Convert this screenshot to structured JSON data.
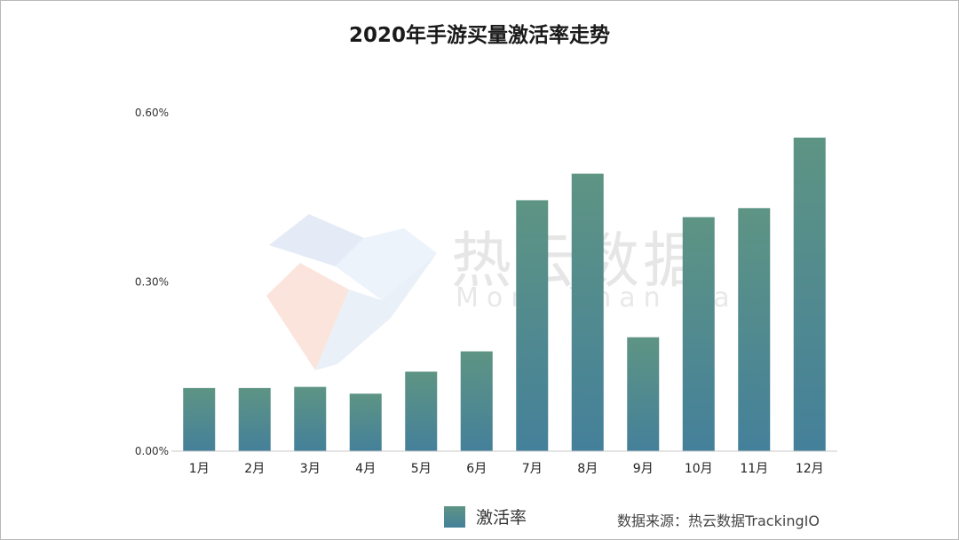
{
  "watermark": {
    "brand_cn": "热云数据",
    "tagline": "More Than Data"
  },
  "legend": {
    "label": "激活率"
  },
  "source": "数据来源：热云数据TrackingIO",
  "colors": {
    "bar_top": "#5e9484",
    "bar_bottom": "#44809a",
    "axis": "#c8c8c8"
  },
  "chart_data": {
    "type": "bar",
    "title": "2020年手游买量激活率走势",
    "categories": [
      "1月",
      "2月",
      "3月",
      "4月",
      "5月",
      "6月",
      "7月",
      "8月",
      "9月",
      "10月",
      "11月",
      "12月"
    ],
    "series": [
      {
        "name": "激活率",
        "values": [
          0.112,
          0.112,
          0.114,
          0.102,
          0.141,
          0.177,
          0.445,
          0.492,
          0.202,
          0.415,
          0.431,
          0.556
        ]
      }
    ],
    "ylim": [
      0,
      0.6
    ],
    "yticks": [
      "0.00%",
      "0.30%",
      "0.60%"
    ],
    "ytick_values": [
      0,
      0.3,
      0.6
    ],
    "unit": "%",
    "grid": false,
    "legend_position": "bottom"
  }
}
